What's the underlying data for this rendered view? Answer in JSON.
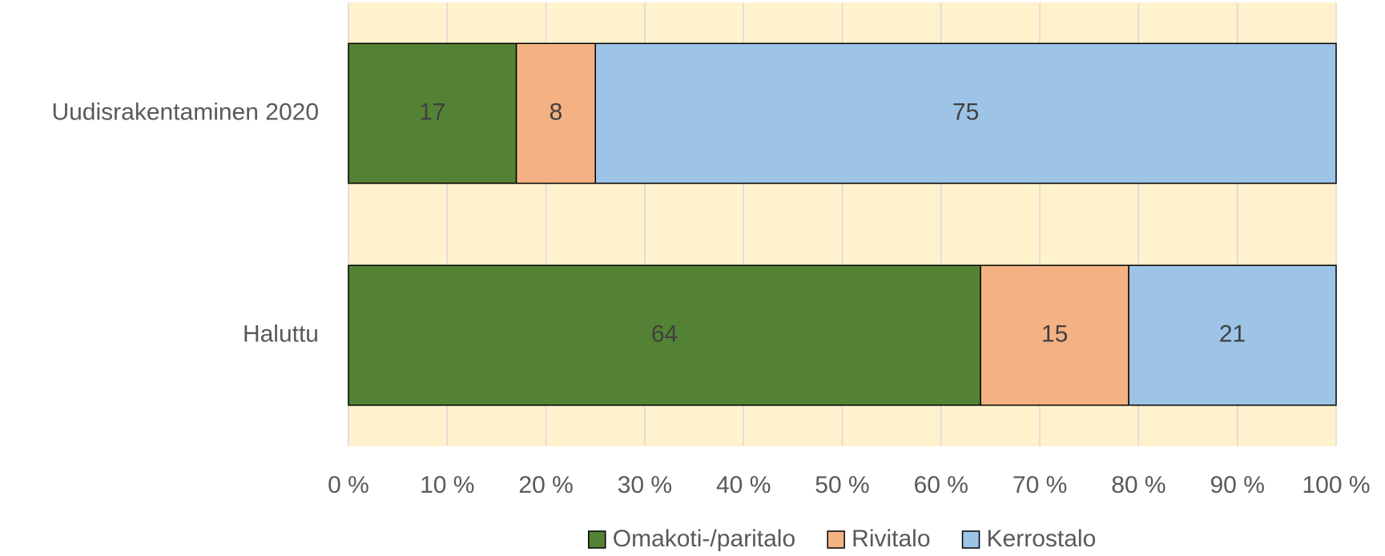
{
  "chart_data": {
    "type": "bar",
    "orientation": "horizontal",
    "stacked": true,
    "categories": [
      "Uudisrakentaminen 2020",
      "Haluttu"
    ],
    "series": [
      {
        "name": "Omakoti-/paritalo",
        "color": "#548235",
        "values": [
          17,
          64
        ]
      },
      {
        "name": "Rivitalo",
        "color": "#f4b183",
        "values": [
          8,
          15
        ]
      },
      {
        "name": "Kerrostalo",
        "color": "#9dc3e6",
        "values": [
          75,
          21
        ]
      }
    ],
    "xlim": [
      0,
      100
    ],
    "xticks": [
      {
        "value": 0,
        "label": "0 %"
      },
      {
        "value": 10,
        "label": "10 %"
      },
      {
        "value": 20,
        "label": "20 %"
      },
      {
        "value": 30,
        "label": "30 %"
      },
      {
        "value": 40,
        "label": "40 %"
      },
      {
        "value": 50,
        "label": "50 %"
      },
      {
        "value": 60,
        "label": "60 %"
      },
      {
        "value": 70,
        "label": "70 %"
      },
      {
        "value": 80,
        "label": "80 %"
      },
      {
        "value": 90,
        "label": "90 %"
      },
      {
        "value": 100,
        "label": "100 %"
      }
    ],
    "grid": true,
    "plot_background": "#fff2cc",
    "legend": "bottom"
  }
}
